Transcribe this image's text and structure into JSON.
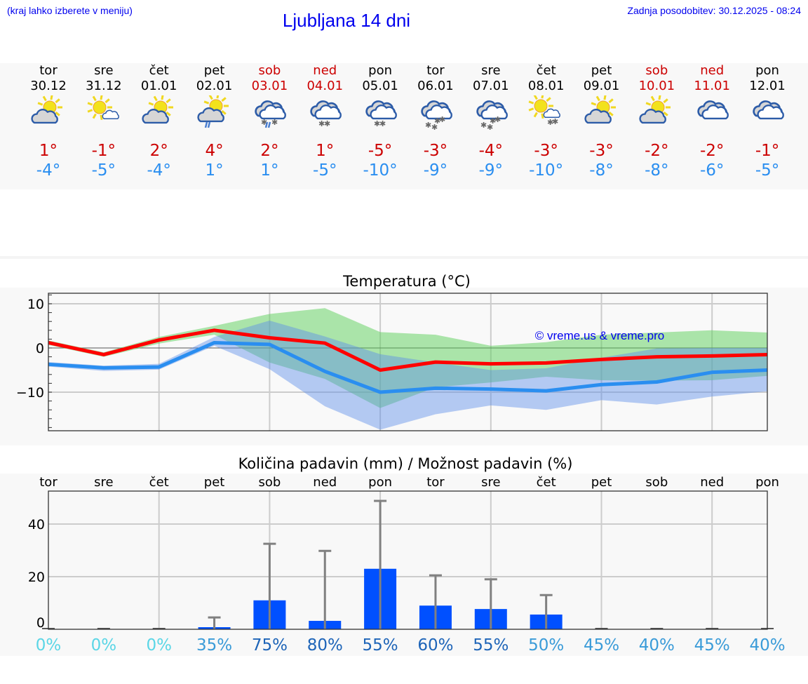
{
  "header": {
    "hint": "(kraj lahko izberete v meniju)",
    "title": "Ljubljana 14 dni",
    "updated": "Zadnja posodobitev: 30.12.2025 - 08:24"
  },
  "colors": {
    "max": "#cc0000",
    "min": "#2a8ef0",
    "link": "#0000ee",
    "bar": "#0050ff",
    "band_max": "#aee8ad",
    "band_min": "#adc6f2",
    "overlap": "#7fc8a8"
  },
  "days": [
    {
      "dow": "tor",
      "date": "30.12",
      "weekend": false,
      "icon": "sun-cloud",
      "max": "1°",
      "min": "-4°"
    },
    {
      "dow": "sre",
      "date": "31.12",
      "weekend": false,
      "icon": "sun-small-cloud",
      "max": "-1°",
      "min": "-5°"
    },
    {
      "dow": "čet",
      "date": "01.01",
      "weekend": false,
      "icon": "sun-cloud",
      "max": "2°",
      "min": "-4°"
    },
    {
      "dow": "pet",
      "date": "02.01",
      "weekend": false,
      "icon": "sun-cloud-rain",
      "max": "4°",
      "min": "1°"
    },
    {
      "dow": "sob",
      "date": "03.01",
      "weekend": true,
      "icon": "cloud-sleet",
      "max": "2°",
      "min": "1°"
    },
    {
      "dow": "ned",
      "date": "04.01",
      "weekend": true,
      "icon": "cloud-snow",
      "max": "1°",
      "min": "-5°"
    },
    {
      "dow": "pon",
      "date": "05.01",
      "weekend": false,
      "icon": "cloud-snow",
      "max": "-5°",
      "min": "-10°"
    },
    {
      "dow": "tor",
      "date": "06.01",
      "weekend": false,
      "icon": "cloud-heavy-snow",
      "max": "-3°",
      "min": "-9°"
    },
    {
      "dow": "sre",
      "date": "07.01",
      "weekend": false,
      "icon": "cloud-heavy-snow",
      "max": "-4°",
      "min": "-9°"
    },
    {
      "dow": "čet",
      "date": "08.01",
      "weekend": false,
      "icon": "sun-small-cloud-snow",
      "max": "-3°",
      "min": "-10°"
    },
    {
      "dow": "pet",
      "date": "09.01",
      "weekend": false,
      "icon": "sun-cloud",
      "max": "-3°",
      "min": "-8°"
    },
    {
      "dow": "sob",
      "date": "10.01",
      "weekend": true,
      "icon": "sun-cloud",
      "max": "-2°",
      "min": "-8°"
    },
    {
      "dow": "ned",
      "date": "11.01",
      "weekend": true,
      "icon": "cloudy",
      "max": "-2°",
      "min": "-6°"
    },
    {
      "dow": "pon",
      "date": "12.01",
      "weekend": false,
      "icon": "cloudy",
      "max": "-1°",
      "min": "-5°"
    }
  ],
  "chart_data": [
    {
      "type": "line",
      "title": "Temperatura (°C)",
      "watermark": "© vreme.us & vreme.pro",
      "ylim": [
        -18.7,
        12.4
      ],
      "yticks": [
        {
          "v": 10,
          "label": "10"
        },
        {
          "v": 0,
          "label": "0"
        },
        {
          "v": -10,
          "label": "−10"
        }
      ],
      "grid": true,
      "series": [
        {
          "key": "max",
          "values": [
            1.2,
            -1.5,
            1.8,
            4.0,
            2.3,
            1.1,
            -5.0,
            -3.2,
            -3.6,
            -3.4,
            -2.6,
            -2.0,
            -1.8,
            -1.5
          ]
        },
        {
          "key": "min",
          "values": [
            -3.7,
            -4.5,
            -4.3,
            1.2,
            0.8,
            -5.3,
            -10.0,
            -9.1,
            -9.3,
            -9.7,
            -8.3,
            -7.7,
            -5.5,
            -5.0
          ]
        }
      ],
      "bands": [
        {
          "key": "max-range",
          "upper": [
            1.7,
            -1.0,
            2.5,
            5.0,
            7.7,
            9.0,
            3.6,
            3.0,
            0.5,
            1.3,
            3.0,
            3.5,
            4.0,
            3.5
          ],
          "lower": [
            0.7,
            -2.0,
            1.0,
            3.0,
            -3.3,
            -7.0,
            -13.6,
            -8.9,
            -7.8,
            -6.5,
            -7.3,
            -7.4,
            -7.3,
            -6.3
          ]
        },
        {
          "key": "min-range",
          "upper": [
            -3.2,
            -4.0,
            -3.6,
            2.5,
            6.2,
            2.6,
            -1.4,
            -3.3,
            -5.0,
            -4.6,
            -2.2,
            -0.1,
            0.0,
            0.0
          ],
          "lower": [
            -4.2,
            -5.2,
            -4.9,
            0.5,
            -4.8,
            -13.2,
            -18.5,
            -15.0,
            -13.0,
            -14.0,
            -11.8,
            -12.8,
            -11.0,
            -9.8
          ]
        }
      ]
    },
    {
      "type": "bar",
      "title": "Količina padavin (mm) / Možnost padavin (%)",
      "categories": [
        "tor",
        "sre",
        "čet",
        "pet",
        "sob",
        "ned",
        "pon",
        "tor",
        "sre",
        "čet",
        "pet",
        "sob",
        "ned",
        "pon"
      ],
      "ylim": [
        0,
        52.5
      ],
      "yticks": [
        {
          "v": 40,
          "label": "40"
        },
        {
          "v": 20,
          "label": "20"
        },
        {
          "v": 0,
          "label": "0"
        }
      ],
      "values": [
        0,
        0,
        0,
        0.8,
        11,
        3.2,
        23,
        9,
        7.7,
        5.6,
        0,
        0,
        0,
        0
      ],
      "error_max": [
        0,
        0,
        0,
        4.5,
        32.5,
        29.8,
        48.8,
        20.5,
        19,
        13,
        0,
        0,
        0,
        0
      ],
      "chance": [
        "0%",
        "0%",
        "0%",
        "35%",
        "75%",
        "80%",
        "55%",
        "60%",
        "55%",
        "50%",
        "45%",
        "40%",
        "45%",
        "40%"
      ],
      "chance_colors": [
        "#5ad6e6",
        "#5ad6e6",
        "#5ad6e6",
        "#3a9bd8",
        "#1d64b8",
        "#1d64b8",
        "#1d64b8",
        "#1d64b8",
        "#1d64b8",
        "#3a9bd8",
        "#3a9bd8",
        "#3a9bd8",
        "#3a9bd8",
        "#3a9bd8"
      ]
    }
  ]
}
